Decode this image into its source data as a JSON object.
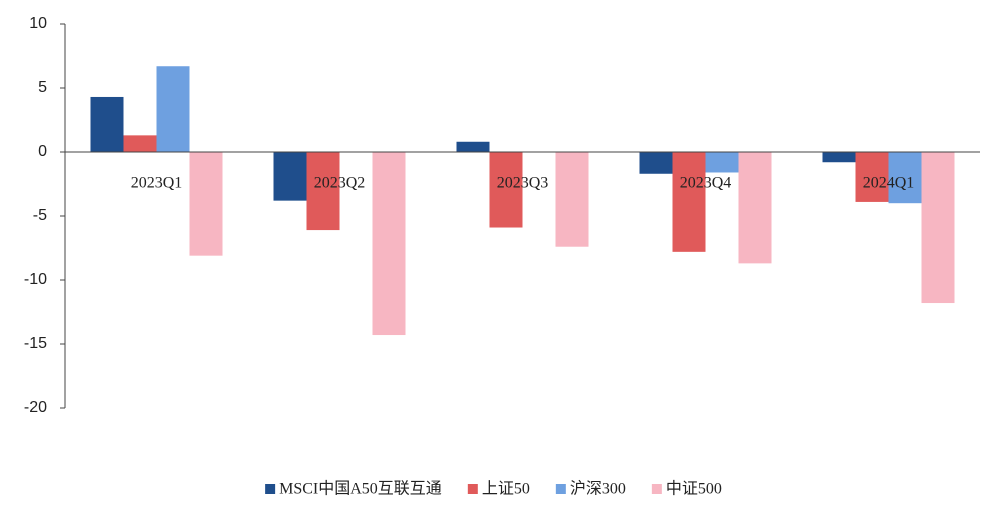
{
  "chart_data": {
    "type": "bar",
    "categories": [
      "2023Q1",
      "2023Q2",
      "2023Q3",
      "2023Q4",
      "2024Q1"
    ],
    "series": [
      {
        "name": "MSCI中国A50互联互通",
        "color": "#1f4e8c",
        "values": [
          4.3,
          -3.8,
          0.8,
          -1.7,
          -0.8
        ]
      },
      {
        "name": "上证50",
        "color": "#e05a5a",
        "values": [
          1.3,
          -6.1,
          -5.9,
          -7.8,
          -3.9
        ]
      },
      {
        "name": "沪深300",
        "color": "#6ea0e0",
        "values": [
          6.7,
          0,
          0,
          -1.6,
          -4.0
        ]
      },
      {
        "name": "中证500",
        "color": "#f7b6c2",
        "values": [
          -8.1,
          -14.3,
          -7.4,
          -8.7,
          -11.8
        ]
      }
    ],
    "ylim": [
      -20,
      10
    ],
    "yticks": [
      -20,
      -15,
      -10,
      -5,
      0,
      5,
      10
    ],
    "grid": false,
    "legend": "bottom"
  }
}
